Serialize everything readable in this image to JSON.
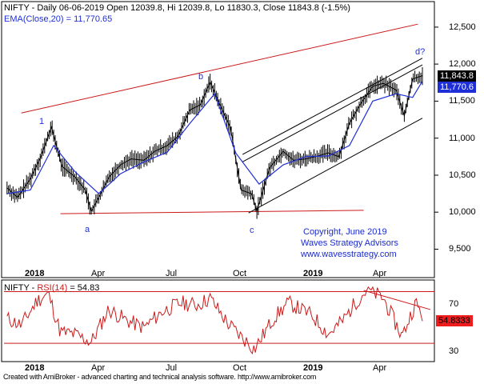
{
  "header": {
    "price_title": "NIFTY - Daily 06-06-2019 Open 12039.8, Hi 12039.8, Lo 11830.3, Close 11843.8 (-1.5%)",
    "ema_label": "EMA(Close,20) = 11,770.65",
    "rsi_name": "NIFTY - ",
    "rsi_label": "RSI(14)",
    "rsi_value": "= 54.83"
  },
  "price_axis": {
    "ticks": [
      "12,500",
      "12,000",
      "11,500",
      "11,000",
      "10,500",
      "10,000",
      "9,500"
    ],
    "close_tag": "11,843.8",
    "ema_tag": "11,770.6"
  },
  "rsi_axis": {
    "ticks": [
      "70",
      "30"
    ],
    "value_tag": "54.8333"
  },
  "x_axis": {
    "labels": [
      "2018",
      "Apr",
      "Jul",
      "Oct",
      "2019",
      "Apr"
    ]
  },
  "wave_labels": [
    "1",
    "a",
    "b",
    "c",
    "d?"
  ],
  "copyright": {
    "line1": "Copyright, June 2019",
    "line2": "Waves Strategy Advisors",
    "line3": "www.wavesstrategy.com"
  },
  "footer": "Created with AmiBroker - advanced charting and technical analysis software. http://www.amibroker.com",
  "colors": {
    "price": "#000000",
    "ema": "#1f2fd8",
    "trendline": "#cc1a1a",
    "channel": "#000000",
    "rsi": "#cc1a1a",
    "close_tag_bg": "#000000",
    "ema_tag_bg": "#1f2fd8",
    "rsi_tag_bg": "#ee1c1c"
  },
  "chart_data": [
    {
      "type": "candlestick",
      "title": "NIFTY - Daily",
      "ylim": [
        9300,
        12650
      ],
      "x_range": [
        "2017-11-27",
        "2019-06-06"
      ],
      "series": [
        {
          "name": "NIFTY",
          "x": [
            "2017-12-01",
            "2017-12-15",
            "2018-01-01",
            "2018-01-15",
            "2018-01-29",
            "2018-02-12",
            "2018-03-01",
            "2018-03-15",
            "2018-03-23",
            "2018-04-02",
            "2018-04-16",
            "2018-05-01",
            "2018-05-15",
            "2018-06-01",
            "2018-06-15",
            "2018-07-02",
            "2018-07-16",
            "2018-08-01",
            "2018-08-15",
            "2018-08-28",
            "2018-09-10",
            "2018-09-24",
            "2018-10-08",
            "2018-10-22",
            "2018-10-29",
            "2018-11-15",
            "2018-12-03",
            "2018-12-17",
            "2019-01-02",
            "2019-01-15",
            "2019-02-01",
            "2019-02-15",
            "2019-03-01",
            "2019-03-15",
            "2019-04-01",
            "2019-04-15",
            "2019-05-02",
            "2019-05-13",
            "2019-05-24",
            "2019-06-06"
          ],
          "values": [
            10330,
            10200,
            10450,
            10750,
            11150,
            10620,
            10480,
            10300,
            10010,
            10200,
            10480,
            10640,
            10720,
            10700,
            10820,
            10900,
            11020,
            11380,
            11450,
            11760,
            11450,
            11140,
            10300,
            10250,
            10010,
            10600,
            10820,
            10700,
            10720,
            10750,
            10800,
            10750,
            11200,
            11450,
            11700,
            11740,
            11650,
            11300,
            11800,
            11843.8
          ]
        },
        {
          "name": "EMA(Close,20)",
          "x": [
            "2017-12-01",
            "2018-01-01",
            "2018-02-01",
            "2018-03-01",
            "2018-04-02",
            "2018-05-01",
            "2018-06-01",
            "2018-07-02",
            "2018-08-01",
            "2018-09-03",
            "2018-10-01",
            "2018-11-01",
            "2018-12-03",
            "2019-01-02",
            "2019-02-01",
            "2019-03-01",
            "2019-04-01",
            "2019-05-02",
            "2019-05-24",
            "2019-06-06"
          ],
          "values": [
            10250,
            10300,
            10900,
            10550,
            10250,
            10520,
            10680,
            10810,
            11200,
            11600,
            10800,
            10380,
            10640,
            10750,
            10760,
            10900,
            11500,
            11600,
            11550,
            11770.65
          ]
        }
      ],
      "trendlines": [
        {
          "name": "upper red",
          "from": [
            "2017-12-20",
            11340
          ],
          "to": [
            "2019-05-31",
            12540
          ]
        },
        {
          "name": "lower red",
          "from": [
            "2018-02-10",
            9980
          ],
          "to": [
            "2019-03-20",
            10025
          ]
        },
        {
          "name": "channel top",
          "from": [
            "2018-10-10",
            10780
          ],
          "to": [
            "2019-06-06",
            12080
          ]
        },
        {
          "name": "channel middle",
          "from": [
            "2018-10-10",
            10680
          ],
          "to": [
            "2019-06-06",
            11990
          ]
        },
        {
          "name": "channel bottom",
          "from": [
            "2018-10-18",
            9990
          ],
          "to": [
            "2019-06-06",
            11270
          ]
        }
      ]
    },
    {
      "type": "line",
      "title": "RSI(14)",
      "ylim": [
        18,
        82
      ],
      "series": [
        {
          "name": "RSI(14)",
          "x": [
            "2017-12-01",
            "2017-12-20",
            "2018-01-10",
            "2018-01-25",
            "2018-02-10",
            "2018-03-01",
            "2018-03-23",
            "2018-04-15",
            "2018-05-10",
            "2018-06-01",
            "2018-06-25",
            "2018-07-20",
            "2018-08-10",
            "2018-08-28",
            "2018-09-20",
            "2018-10-08",
            "2018-10-26",
            "2018-11-20",
            "2018-12-10",
            "2019-01-10",
            "2019-02-01",
            "2019-02-20",
            "2019-03-10",
            "2019-03-25",
            "2019-04-15",
            "2019-05-10",
            "2019-05-28",
            "2019-06-06"
          ],
          "values": [
            52,
            46,
            68,
            74,
            40,
            38,
            31,
            60,
            50,
            44,
            58,
            66,
            64,
            70,
            48,
            36,
            25,
            52,
            66,
            55,
            38,
            50,
            67,
            78,
            70,
            36,
            66,
            54.83
          ]
        }
      ],
      "guides": [
        {
          "name": "resistance",
          "from": [
            "2019-03-20",
            77
          ],
          "to": [
            "2019-06-06",
            60
          ]
        },
        {
          "name": "upper band",
          "from": [
            "2017-11-27",
            76
          ],
          "to": [
            "2019-06-06",
            76
          ]
        },
        {
          "name": "lower band",
          "from": [
            "2017-11-27",
            30
          ],
          "to": [
            "2019-06-06",
            30
          ]
        }
      ]
    }
  ]
}
